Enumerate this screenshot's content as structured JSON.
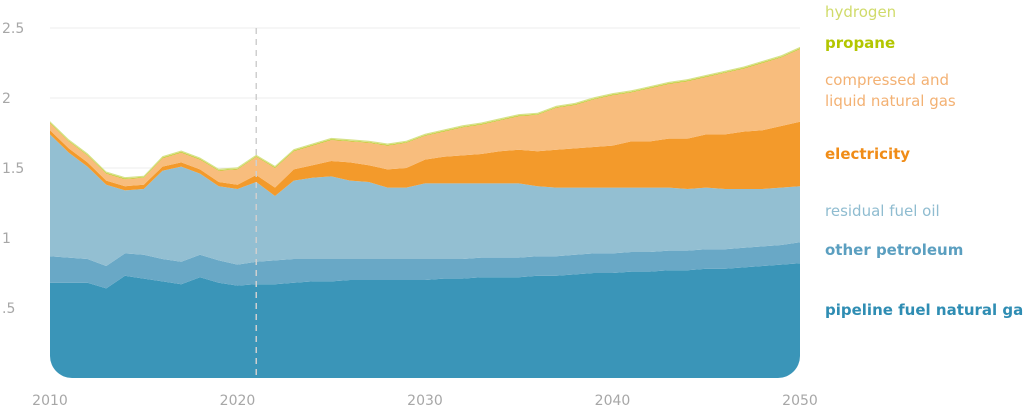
{
  "chart_data": {
    "type": "area",
    "stacked": true,
    "x": [
      2010,
      2011,
      2012,
      2013,
      2014,
      2015,
      2016,
      2017,
      2018,
      2019,
      2020,
      2021,
      2022,
      2023,
      2024,
      2025,
      2026,
      2027,
      2028,
      2029,
      2030,
      2031,
      2032,
      2033,
      2034,
      2035,
      2036,
      2037,
      2038,
      2039,
      2040,
      2041,
      2042,
      2043,
      2044,
      2045,
      2046,
      2047,
      2048,
      2049,
      2050
    ],
    "xlim": [
      2010,
      2050
    ],
    "ylim": [
      0,
      2.5
    ],
    "x_ticks": [
      "2010",
      "2020",
      "2030",
      "2040",
      "2050"
    ],
    "y_ticks": [
      {
        "value": 0.5,
        "label": ".5"
      },
      {
        "value": 1,
        "label": "1"
      },
      {
        "value": 1.5,
        "label": "1.5"
      },
      {
        "value": 2,
        "label": "2"
      },
      {
        "value": 2.5,
        "label": "2.5"
      }
    ],
    "grid": true,
    "reference_line": {
      "x": 2021
    },
    "legend_position": "right",
    "series": [
      {
        "name": "pipeline fuel natural gas",
        "color": "#3a95b8",
        "values": [
          0.68,
          0.68,
          0.68,
          0.64,
          0.73,
          0.71,
          0.69,
          0.67,
          0.72,
          0.68,
          0.66,
          0.67,
          0.67,
          0.68,
          0.69,
          0.69,
          0.7,
          0.7,
          0.7,
          0.7,
          0.7,
          0.71,
          0.71,
          0.72,
          0.72,
          0.72,
          0.73,
          0.73,
          0.74,
          0.75,
          0.75,
          0.76,
          0.76,
          0.77,
          0.77,
          0.78,
          0.78,
          0.79,
          0.8,
          0.81,
          0.82
        ]
      },
      {
        "name": "other petroleum",
        "color": "#69a8c6",
        "values": [
          0.19,
          0.18,
          0.17,
          0.16,
          0.16,
          0.17,
          0.16,
          0.16,
          0.16,
          0.16,
          0.15,
          0.16,
          0.17,
          0.17,
          0.16,
          0.16,
          0.15,
          0.15,
          0.15,
          0.15,
          0.15,
          0.14,
          0.14,
          0.14,
          0.14,
          0.14,
          0.14,
          0.14,
          0.14,
          0.14,
          0.14,
          0.14,
          0.14,
          0.14,
          0.14,
          0.14,
          0.14,
          0.14,
          0.14,
          0.14,
          0.15
        ]
      },
      {
        "name": "residual fuel oil",
        "color": "#93bfd2",
        "values": [
          0.87,
          0.75,
          0.66,
          0.58,
          0.45,
          0.47,
          0.63,
          0.68,
          0.58,
          0.53,
          0.54,
          0.57,
          0.46,
          0.56,
          0.58,
          0.59,
          0.56,
          0.55,
          0.51,
          0.51,
          0.54,
          0.54,
          0.54,
          0.53,
          0.53,
          0.53,
          0.5,
          0.49,
          0.48,
          0.47,
          0.47,
          0.46,
          0.46,
          0.45,
          0.44,
          0.44,
          0.43,
          0.42,
          0.41,
          0.41,
          0.4
        ]
      },
      {
        "name": "electricity",
        "color": "#f39a2b",
        "values": [
          0.03,
          0.03,
          0.03,
          0.03,
          0.03,
          0.03,
          0.03,
          0.03,
          0.03,
          0.03,
          0.03,
          0.05,
          0.06,
          0.08,
          0.09,
          0.11,
          0.13,
          0.12,
          0.13,
          0.14,
          0.17,
          0.19,
          0.2,
          0.21,
          0.23,
          0.24,
          0.25,
          0.27,
          0.28,
          0.29,
          0.3,
          0.33,
          0.33,
          0.35,
          0.36,
          0.38,
          0.39,
          0.41,
          0.42,
          0.44,
          0.46
        ]
      },
      {
        "name": "compressed and liquid natural gas",
        "color": "#f8bd7d",
        "values": [
          0.05,
          0.05,
          0.05,
          0.05,
          0.05,
          0.05,
          0.06,
          0.07,
          0.07,
          0.08,
          0.11,
          0.13,
          0.14,
          0.13,
          0.14,
          0.15,
          0.15,
          0.16,
          0.17,
          0.18,
          0.17,
          0.18,
          0.2,
          0.21,
          0.22,
          0.24,
          0.26,
          0.3,
          0.31,
          0.34,
          0.36,
          0.35,
          0.38,
          0.39,
          0.41,
          0.41,
          0.44,
          0.45,
          0.48,
          0.49,
          0.52
        ]
      },
      {
        "name": "propane",
        "color": "#b8cb1e",
        "values": [
          0.005,
          0.005,
          0.005,
          0.005,
          0.005,
          0.005,
          0.005,
          0.005,
          0.005,
          0.005,
          0.005,
          0.005,
          0.005,
          0.005,
          0.005,
          0.005,
          0.005,
          0.005,
          0.005,
          0.005,
          0.005,
          0.005,
          0.005,
          0.005,
          0.005,
          0.005,
          0.005,
          0.005,
          0.005,
          0.005,
          0.005,
          0.005,
          0.005,
          0.005,
          0.005,
          0.005,
          0.005,
          0.005,
          0.005,
          0.005,
          0.005
        ]
      },
      {
        "name": "hydrogen",
        "color": "#d7e28a",
        "values": [
          0.01,
          0.01,
          0.01,
          0.01,
          0.01,
          0.01,
          0.01,
          0.01,
          0.01,
          0.01,
          0.01,
          0.01,
          0.01,
          0.01,
          0.01,
          0.01,
          0.01,
          0.01,
          0.01,
          0.01,
          0.01,
          0.01,
          0.01,
          0.01,
          0.01,
          0.01,
          0.01,
          0.01,
          0.01,
          0.01,
          0.01,
          0.01,
          0.01,
          0.01,
          0.01,
          0.01,
          0.01,
          0.01,
          0.01,
          0.01,
          0.01
        ]
      }
    ],
    "legend": [
      {
        "label": "hydrogen",
        "color": "#d0db6a",
        "weight": "normal"
      },
      {
        "label": "propane",
        "color": "#b3c600",
        "weight": "bold"
      },
      {
        "label": "compressed and liquid natural gas",
        "lines": [
          "compressed and",
          "liquid natural gas"
        ],
        "color": "#f3b173",
        "weight": "normal"
      },
      {
        "label": "electricity",
        "color": "#f08c17",
        "weight": "bold"
      },
      {
        "label": "residual fuel oil",
        "color": "#8fbcd0",
        "weight": "normal"
      },
      {
        "label": "other petroleum",
        "color": "#5b9fc0",
        "weight": "bold"
      },
      {
        "label": "pipeline fuel natural gas",
        "color": "#2f8db3",
        "weight": "bold"
      }
    ]
  }
}
